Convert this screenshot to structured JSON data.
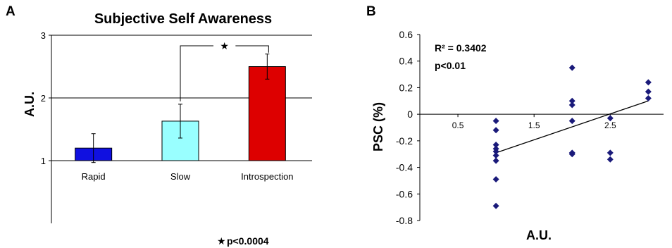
{
  "panel_a": {
    "letter": "A",
    "footnote": "p<0.0004"
  },
  "panel_b": {
    "letter": "B",
    "r_squared": "R² = 0.3402",
    "p_value": "p<0.01"
  },
  "colors": {
    "rapid": "#1010e0",
    "slow": "#99ffff",
    "introspection": "#dd0000",
    "points": "#1a1a7a"
  },
  "chart_data": [
    {
      "type": "bar",
      "title": "Subjective Self Awareness",
      "xlabel": "",
      "ylabel": "A.U.",
      "categories": [
        "Rapid",
        "Slow",
        "Introspection"
      ],
      "values": [
        1.2,
        1.63,
        2.5
      ],
      "error": [
        0.23,
        0.27,
        0.2
      ],
      "ylim": [
        0,
        3
      ],
      "ylim_note": "y axis extends below 1 with ticks labelled 1, 2, 3",
      "yticks": [
        "1",
        "2",
        "3"
      ],
      "gridlines": [
        2,
        3
      ],
      "significance": {
        "between": [
          "Slow",
          "Introspection"
        ],
        "marker": "★"
      },
      "legend": "none"
    },
    {
      "type": "scatter",
      "title": "",
      "xlabel": "A.U.",
      "ylabel": "PSC (%)",
      "xlim": [
        0,
        3.2
      ],
      "ylim": [
        -0.8,
        0.6
      ],
      "xticks": [
        "0.5",
        "1.5",
        "2.5"
      ],
      "yticks": [
        "0.6",
        "0.4",
        "0.2",
        "0",
        "-0.2",
        "-0.4",
        "-0.6",
        "-0.8"
      ],
      "points": [
        {
          "x": 1.0,
          "y": -0.05
        },
        {
          "x": 1.0,
          "y": -0.12
        },
        {
          "x": 1.0,
          "y": -0.23
        },
        {
          "x": 1.0,
          "y": -0.26
        },
        {
          "x": 1.0,
          "y": -0.28
        },
        {
          "x": 1.0,
          "y": -0.31
        },
        {
          "x": 1.0,
          "y": -0.35
        },
        {
          "x": 1.0,
          "y": -0.49
        },
        {
          "x": 1.0,
          "y": -0.69
        },
        {
          "x": 2.0,
          "y": 0.35
        },
        {
          "x": 2.0,
          "y": 0.1
        },
        {
          "x": 2.0,
          "y": 0.07
        },
        {
          "x": 2.0,
          "y": -0.05
        },
        {
          "x": 2.0,
          "y": -0.29
        },
        {
          "x": 2.0,
          "y": -0.3
        },
        {
          "x": 2.5,
          "y": -0.03
        },
        {
          "x": 2.5,
          "y": -0.29
        },
        {
          "x": 2.5,
          "y": -0.34
        },
        {
          "x": 3.0,
          "y": 0.24
        },
        {
          "x": 3.0,
          "y": 0.17
        },
        {
          "x": 3.0,
          "y": 0.12
        }
      ],
      "trendline": {
        "x": [
          1.0,
          3.0
        ],
        "y": [
          -0.29,
          0.1
        ]
      },
      "legend": "none"
    }
  ]
}
